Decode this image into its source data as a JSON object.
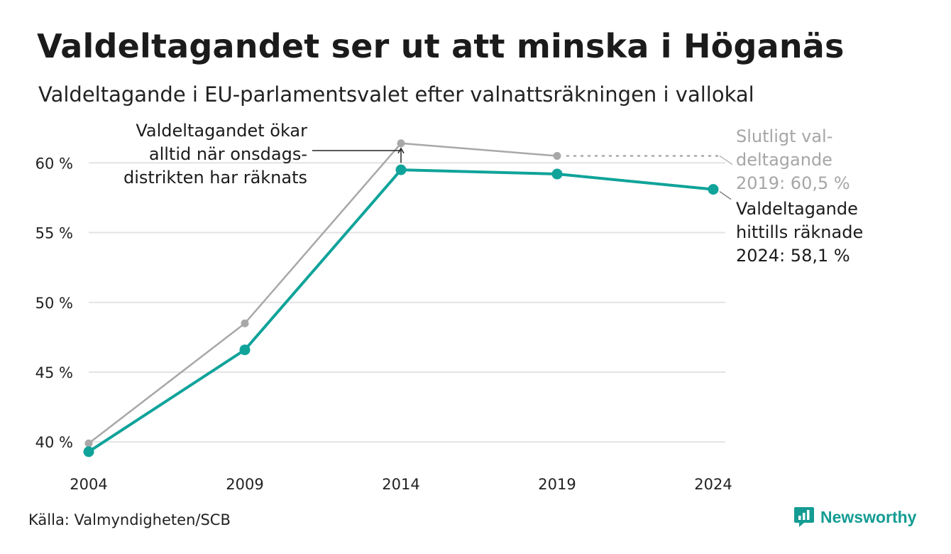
{
  "header": {
    "title": "Valdeltagandet ser ut att minska i Höganäs",
    "subtitle": "Valdeltagande i EU-parlamentsvalet efter valnattsräkningen i vallokal"
  },
  "footer": {
    "source": "Källa: Valmyndigheten/SCB",
    "brand": "Newsworthy"
  },
  "colors": {
    "accent": "#0fa39a",
    "final": "#a8a8a8",
    "grid": "#e3e3e3",
    "text": "#222222"
  },
  "chart_data": {
    "type": "line",
    "categories": [
      "2004",
      "2009",
      "2014",
      "2019",
      "2024"
    ],
    "y_ticks": [
      40,
      45,
      50,
      55,
      60
    ],
    "y_tick_labels": [
      "40 %",
      "45 %",
      "50 %",
      "55 %",
      "60 %"
    ],
    "ylim": [
      39.3,
      62.0
    ],
    "grid": true,
    "series": [
      {
        "key": "final",
        "values": [
          39.9,
          48.5,
          61.4,
          60.5,
          null
        ]
      },
      {
        "key": "counted",
        "values": [
          39.3,
          46.6,
          59.5,
          59.2,
          58.1
        ]
      }
    ],
    "annotations": {
      "rise_note": [
        "Valdeltagandet ökar",
        "alltid när onsdags-",
        "distrikten har räknats"
      ],
      "final_note": [
        "Slutligt val-",
        "deltagande",
        "2019: 60,5 %"
      ],
      "current_note": [
        "Valdeltagande",
        "hittills räknade",
        "2024: 58,1 %"
      ]
    }
  }
}
